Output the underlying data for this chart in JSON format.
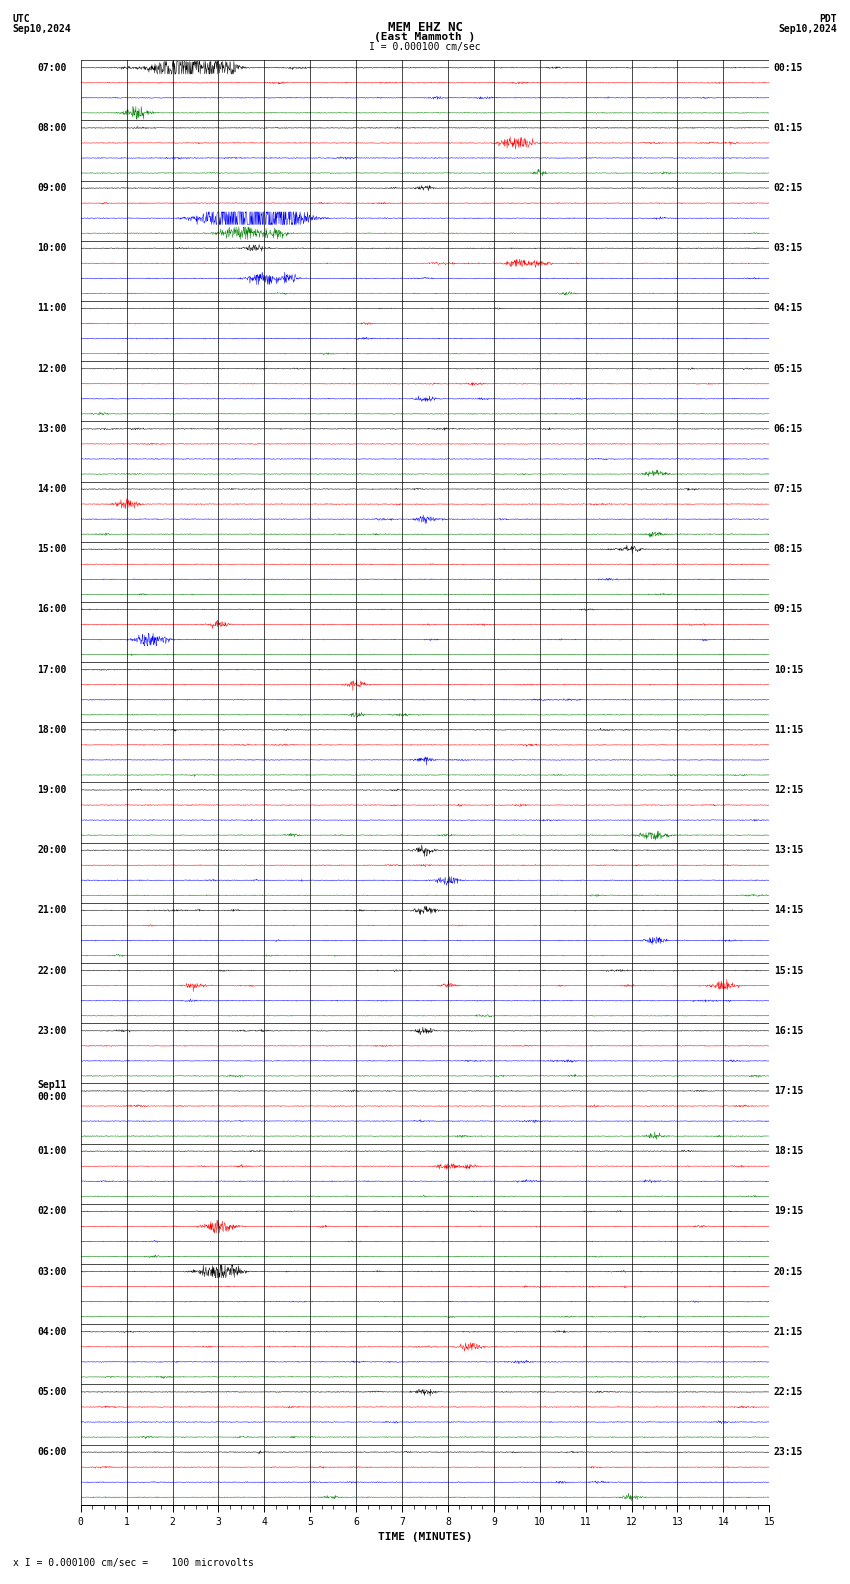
{
  "title_line1": "MEM EHZ NC",
  "title_line2": "(East Mammoth )",
  "scale_label": "I = 0.000100 cm/sec",
  "utc_label": "UTC",
  "utc_date": "Sep10,2024",
  "pdt_label": "PDT",
  "pdt_date": "Sep10,2024",
  "bottom_label": "TIME (MINUTES)",
  "bottom_note": "x I = 0.000100 cm/sec =    100 microvolts",
  "left_times": [
    "07:00",
    "08:00",
    "09:00",
    "10:00",
    "11:00",
    "12:00",
    "13:00",
    "14:00",
    "15:00",
    "16:00",
    "17:00",
    "18:00",
    "19:00",
    "20:00",
    "21:00",
    "22:00",
    "23:00",
    "Sep11\n00:00",
    "01:00",
    "02:00",
    "03:00",
    "04:00",
    "05:00",
    "06:00"
  ],
  "right_times": [
    "00:15",
    "01:15",
    "02:15",
    "03:15",
    "04:15",
    "05:15",
    "06:15",
    "07:15",
    "08:15",
    "09:15",
    "10:15",
    "11:15",
    "12:15",
    "13:15",
    "14:15",
    "15:15",
    "16:15",
    "17:15",
    "18:15",
    "19:15",
    "20:15",
    "21:15",
    "22:15",
    "23:15"
  ],
  "n_rows": 24,
  "n_traces_per_row": 4,
  "colors": [
    "black",
    "red",
    "blue",
    "green"
  ],
  "bg_color": "white",
  "x_min": 0,
  "x_max": 15,
  "x_ticks": [
    0,
    1,
    2,
    3,
    4,
    5,
    6,
    7,
    8,
    9,
    10,
    11,
    12,
    13,
    14,
    15
  ],
  "noise_amp": 0.012,
  "font_size_title": 9,
  "font_size_labels": 7,
  "font_size_axis": 7
}
